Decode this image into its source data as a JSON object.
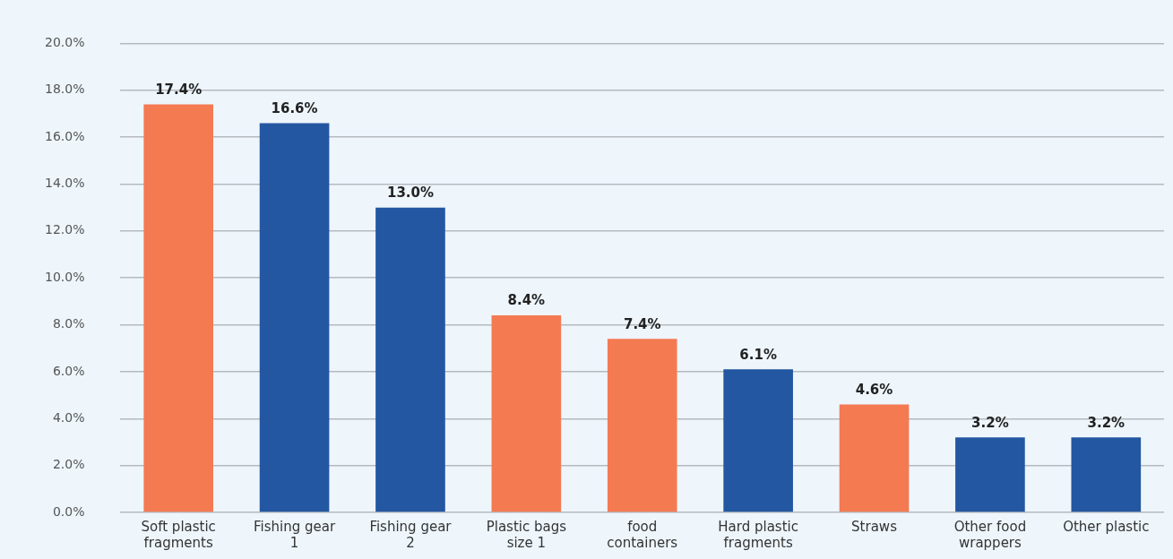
{
  "chart_data": {
    "type": "bar",
    "categories": [
      "Soft plastic fragments",
      "Fishing gear 1",
      "Fishing gear 2",
      "Plastic bags size 1",
      "food containers",
      "Hard plastic fragments",
      "Straws",
      "Other food wrappers",
      "Other plastic"
    ],
    "values": [
      17.4,
      16.6,
      13.0,
      8.4,
      7.4,
      6.1,
      4.6,
      3.2,
      3.2
    ],
    "colors": [
      "#f47a52",
      "#2357a1",
      "#2357a1",
      "#f47a52",
      "#f47a52",
      "#2357a1",
      "#f47a52",
      "#2357a1",
      "#2357a1"
    ],
    "value_labels": [
      "17.4%",
      "16.6%",
      "13.0%",
      "8.4%",
      "7.4%",
      "6.1%",
      "4.6%",
      "3.2%",
      "3.2%"
    ],
    "ylim": [
      0,
      20
    ],
    "yticks": [
      {
        "value": 0,
        "label": "0.0%"
      },
      {
        "value": 2,
        "label": "2.0%"
      },
      {
        "value": 4,
        "label": "4.0%"
      },
      {
        "value": 6,
        "label": "6.0%"
      },
      {
        "value": 8,
        "label": "8.0%"
      },
      {
        "value": 10,
        "label": "10.0%"
      },
      {
        "value": 12,
        "label": "12.0%"
      },
      {
        "value": 14,
        "label": "14.0%"
      },
      {
        "value": 16,
        "label": "16.0%"
      },
      {
        "value": 18,
        "label": "18.0%"
      },
      {
        "value": 20,
        "label": "20.0%"
      }
    ],
    "grid": "y"
  }
}
